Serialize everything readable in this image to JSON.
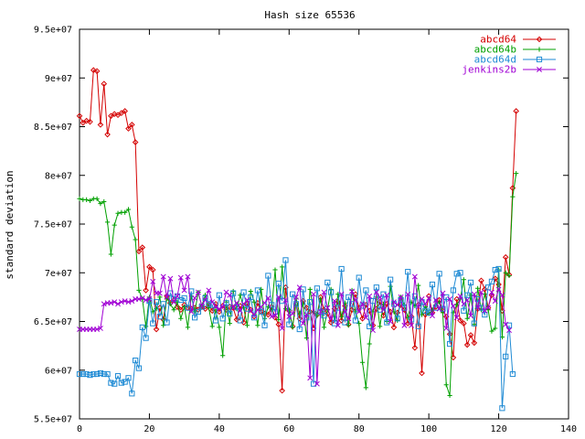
{
  "chart_data": {
    "type": "line",
    "title": "Hash size 65536",
    "ylabel": "standard deviation",
    "xlabel": "",
    "xlim": [
      0,
      140
    ],
    "ylim": [
      55000000,
      95000000
    ],
    "xticks": [
      0,
      20,
      40,
      60,
      80,
      100,
      120,
      140
    ],
    "xtick_labels": [
      "0",
      "20",
      "40",
      "60",
      "80",
      "100",
      "120",
      "140"
    ],
    "yticks": [
      55000000,
      60000000,
      65000000,
      70000000,
      75000000,
      80000000,
      85000000,
      90000000,
      95000000
    ],
    "ytick_labels": [
      "5.5e+07",
      "6e+07",
      "6.5e+07",
      "7e+07",
      "7.5e+07",
      "8e+07",
      "8.5e+07",
      "9e+07",
      "9.5e+07"
    ],
    "grid": false,
    "legend_position": "top-right",
    "series": [
      {
        "name": "abcd64",
        "color": "#d40000",
        "marker": "diamond",
        "y": [
          86.1,
          85.4,
          85.6,
          85.5,
          90.8,
          90.7,
          85.2,
          89.4,
          84.2,
          86.1,
          86.3,
          86.2,
          86.4,
          86.6,
          84.8,
          85.2,
          83.4,
          72.2,
          72.6,
          68.2,
          70.6,
          70.3,
          64.2,
          66.4,
          65.2,
          67.6,
          66.9,
          67.2,
          66.5,
          66.2,
          66.7,
          66.4,
          66.3,
          66.4,
          66.2,
          66.5,
          66.3,
          66.7,
          66.1,
          66.8,
          66.0,
          66.6,
          66.2,
          66.5,
          66.4,
          65.2,
          66.6,
          64.9,
          66.8,
          66.2,
          65.5,
          66.9,
          66.0,
          65.8,
          65.7,
          66.5,
          65.4,
          64.7,
          57.9,
          68.5,
          66.1,
          64.5,
          66.8,
          65.3,
          67.1,
          66.4,
          66.0,
          64.3,
          65.7,
          67.5,
          66.2,
          65.8,
          64.9,
          66.3,
          67.0,
          65.1,
          66.6,
          64.7,
          66.2,
          67.8,
          66.4,
          65.3,
          66.7,
          66.1,
          64.6,
          66.3,
          67.0,
          65.6,
          66.8,
          66.0,
          64.4,
          65.9,
          66.7,
          66.2,
          64.8,
          65.5,
          62.3,
          66.7,
          59.7,
          65.7,
          67.6,
          65.9,
          66.5,
          67.2,
          66.1,
          65.5,
          63.7,
          61.3,
          67.3,
          65.1,
          64.8,
          62.6,
          63.6,
          62.8,
          66.3,
          69.2,
          68.3,
          66.4,
          67.7,
          69.4,
          68.8,
          66.1,
          71.6,
          69.8,
          78.7,
          86.6
        ]
      },
      {
        "name": "abcd64b",
        "color": "#00a000",
        "marker": "plus",
        "y": [
          77.6,
          77.5,
          77.5,
          77.4,
          77.6,
          77.6,
          77.1,
          77.3,
          75.2,
          71.9,
          74.9,
          76.1,
          76.2,
          76.2,
          76.5,
          74.7,
          73.4,
          68.2,
          67.3,
          64.5,
          67.5,
          66.0,
          66.3,
          67.5,
          64.6,
          67.4,
          66.8,
          66.2,
          67.0,
          65.3,
          66.5,
          64.4,
          67.6,
          66.0,
          68.0,
          66.6,
          67.7,
          66.4,
          64.5,
          66.2,
          64.4,
          61.5,
          67.0,
          64.8,
          68.1,
          66.3,
          67.7,
          66.4,
          64.6,
          68.1,
          67.0,
          64.6,
          68.3,
          65.3,
          66.5,
          66.2,
          70.3,
          65.2,
          70.6,
          66.3,
          66.2,
          64.4,
          67.4,
          65.8,
          66.8,
          63.3,
          68.3,
          66.0,
          65.6,
          67.3,
          64.4,
          66.2,
          68.3,
          65.1,
          67.8,
          65.5,
          66.9,
          64.6,
          68.2,
          66.0,
          64.8,
          60.8,
          58.2,
          62.7,
          66.0,
          67.5,
          64.5,
          66.8,
          65.0,
          68.6,
          66.0,
          65.1,
          67.5,
          66.7,
          65.4,
          67.0,
          66.6,
          68.7,
          65.7,
          66.5,
          65.8,
          66.2,
          66.7,
          67.0,
          65.9,
          58.5,
          57.4,
          65.9,
          66.7,
          67.3,
          69.3,
          65.3,
          67.7,
          64.7,
          68.4,
          66.2,
          67.8,
          66.2,
          64.0,
          64.3,
          70.3,
          63.4,
          70.0,
          69.7,
          77.8,
          80.2
        ]
      },
      {
        "name": "abcd64d",
        "color": "#1e8ad4",
        "marker": "square",
        "y": [
          59.6,
          59.6,
          59.6,
          59.5,
          59.6,
          59.6,
          59.7,
          59.6,
          59.6,
          58.7,
          58.6,
          59.4,
          58.7,
          58.8,
          59.2,
          57.6,
          61.0,
          60.2,
          64.4,
          63.3,
          67.1,
          64.8,
          67.0,
          65.5,
          66.8,
          64.9,
          67.9,
          67.3,
          67.6,
          67.2,
          67.4,
          66.4,
          68.1,
          65.4,
          66.0,
          66.5,
          67.4,
          66.8,
          66.7,
          65.1,
          67.7,
          65.3,
          66.9,
          65.8,
          67.9,
          66.5,
          65.1,
          68.0,
          66.3,
          67.5,
          65.4,
          68.2,
          66.0,
          64.6,
          69.7,
          66.7,
          66.0,
          68.9,
          67.1,
          71.3,
          64.7,
          67.8,
          66.8,
          64.2,
          68.3,
          65.4,
          67.0,
          58.6,
          68.4,
          66.0,
          65.6,
          69.0,
          68.0,
          64.8,
          66.4,
          70.4,
          64.9,
          67.5,
          66.8,
          65.1,
          69.5,
          66.6,
          68.2,
          64.5,
          67.1,
          68.5,
          66.2,
          67.8,
          64.9,
          69.3,
          66.8,
          65.3,
          67.2,
          66.4,
          70.1,
          65.2,
          67.6,
          64.5,
          67.0,
          66.1,
          65.9,
          68.8,
          66.4,
          69.9,
          66.3,
          67.5,
          62.7,
          68.2,
          69.9,
          70.0,
          66.1,
          67.7,
          69.0,
          64.8,
          67.3,
          66.4,
          65.7,
          68.5,
          69.1,
          70.3,
          70.4,
          56.1,
          61.4,
          64.6,
          59.6
        ]
      },
      {
        "name": "jenkins2b",
        "color": "#a000d4",
        "marker": "cross",
        "y": [
          64.2,
          64.2,
          64.2,
          64.2,
          64.2,
          64.2,
          64.3,
          66.8,
          66.9,
          66.9,
          67.0,
          66.8,
          67.0,
          67.1,
          67.0,
          67.1,
          67.3,
          67.3,
          67.4,
          67.2,
          67.3,
          69.1,
          67.9,
          67.9,
          69.6,
          67.5,
          69.4,
          67.0,
          67.6,
          69.5,
          68.2,
          69.6,
          66.0,
          67.4,
          68.0,
          66.6,
          67.2,
          68.2,
          67.0,
          66.5,
          66.3,
          66.5,
          68.0,
          67.7,
          66.4,
          66.9,
          66.1,
          66.8,
          67.2,
          66.1,
          65.7,
          66.2,
          66.5,
          66.9,
          67.4,
          65.5,
          65.6,
          67.5,
          64.3,
          67.2,
          65.5,
          65.8,
          67.5,
          68.5,
          64.8,
          65.7,
          59.2,
          67.8,
          58.6,
          66.0,
          68.0,
          66.4,
          65.3,
          67.1,
          64.6,
          67.8,
          66.0,
          65.3,
          68.1,
          67.2,
          66.0,
          66.8,
          65.4,
          67.6,
          64.1,
          68.0,
          67.5,
          66.2,
          67.7,
          65.0,
          67.0,
          66.7,
          67.5,
          64.6,
          67.8,
          64.6,
          69.6,
          66.5,
          67.3,
          66.8,
          67.4,
          65.6,
          67.2,
          66.3,
          67.9,
          64.3,
          67.3,
          66.6,
          65.4,
          67.6,
          66.8,
          67.2,
          65.6,
          67.8,
          66.4,
          68.0,
          66.1,
          66.4,
          68.0,
          67.1,
          68.3,
          67.7,
          64.7,
          64.1
        ]
      }
    ]
  }
}
